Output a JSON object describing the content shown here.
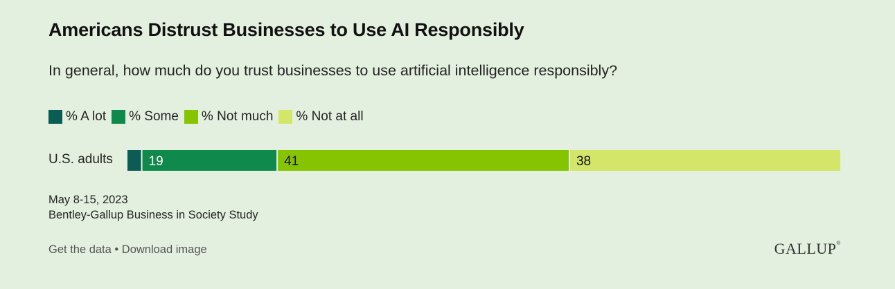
{
  "header": {
    "title": "Americans Distrust Businesses to Use AI Responsibly",
    "subtitle": "In general, how much do you trust businesses to use artificial intelligence responsibly?"
  },
  "legend": [
    {
      "label": "% A lot",
      "color": "#0b5c55"
    },
    {
      "label": "% Some",
      "color": "#0f8a4c"
    },
    {
      "label": "% Not much",
      "color": "#86c400"
    },
    {
      "label": "% Not at all",
      "color": "#d4e66a"
    }
  ],
  "chart_data": {
    "type": "bar",
    "orientation": "horizontal",
    "stacked": true,
    "categories": [
      "U.S. adults"
    ],
    "series": [
      {
        "name": "% A lot",
        "values": [
          2
        ],
        "label": "",
        "color": "#0b5c55",
        "label_color": "#ffffff"
      },
      {
        "name": "% Some",
        "values": [
          19
        ],
        "label": "19",
        "color": "#0f8a4c",
        "label_color": "#ffffff"
      },
      {
        "name": "% Not much",
        "values": [
          41
        ],
        "label": "41",
        "color": "#86c400",
        "label_color": "#111111"
      },
      {
        "name": "% Not at all",
        "values": [
          38
        ],
        "label": "38",
        "color": "#d4e66a",
        "label_color": "#111111"
      }
    ],
    "xlim": [
      0,
      100
    ]
  },
  "footnotes": {
    "date": "May 8-15, 2023",
    "source": "Bentley-Gallup Business in Society Study"
  },
  "links": {
    "get_data": "Get the data",
    "separator": " • ",
    "download": "Download image"
  },
  "logo": {
    "text": "GALLUP",
    "mark": "®"
  }
}
